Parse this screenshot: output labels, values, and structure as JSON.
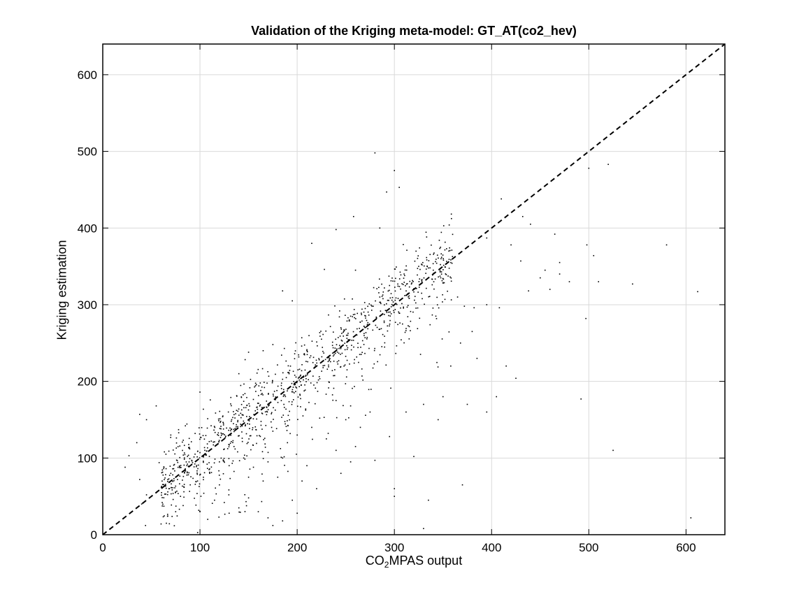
{
  "chart_data": {
    "type": "scatter",
    "title": "Validation of the Kriging meta-model: GT_AT(co2_hev)",
    "xlabel": {
      "main": "CO",
      "sub": "2",
      "rest": "MPAS output"
    },
    "ylabel": "Kriging estimation",
    "xlim": [
      0,
      640
    ],
    "ylim": [
      0,
      640
    ],
    "xticks": [
      0,
      100,
      200,
      300,
      400,
      500,
      600
    ],
    "yticks": [
      0,
      100,
      200,
      300,
      400,
      500,
      600
    ],
    "grid": true,
    "reference_line": {
      "style": "dashed",
      "x": [
        0,
        640
      ],
      "y": [
        0,
        640
      ]
    },
    "marker_color": "#000000",
    "series": [
      {
        "points": [
          [
            280,
            498
          ],
          [
            300,
            475
          ],
          [
            305,
            453
          ],
          [
            292,
            447
          ],
          [
            258,
            415
          ],
          [
            410,
            438
          ],
          [
            285,
            400
          ],
          [
            432,
            415
          ],
          [
            520,
            483
          ],
          [
            500,
            478
          ],
          [
            580,
            378
          ],
          [
            612,
            317
          ],
          [
            545,
            327
          ],
          [
            510,
            330
          ],
          [
            505,
            364
          ],
          [
            498,
            378
          ],
          [
            465,
            392
          ],
          [
            440,
            405
          ],
          [
            420,
            378
          ],
          [
            395,
            387
          ],
          [
            470,
            340
          ],
          [
            455,
            345
          ],
          [
            430,
            357
          ],
          [
            497,
            282
          ],
          [
            492,
            177
          ],
          [
            525,
            110
          ],
          [
            605,
            22
          ],
          [
            425,
            204
          ],
          [
            405,
            180
          ],
          [
            415,
            220
          ],
          [
            395,
            160
          ],
          [
            375,
            170
          ],
          [
            370,
            65
          ],
          [
            335,
            45
          ],
          [
            320,
            102
          ],
          [
            330,
            8
          ],
          [
            300,
            60
          ],
          [
            300,
            50
          ],
          [
            295,
            128
          ],
          [
            280,
            97
          ],
          [
            312,
            160
          ],
          [
            330,
            170
          ],
          [
            350,
            180
          ],
          [
            345,
            150
          ],
          [
            358,
            220
          ],
          [
            368,
            250
          ],
          [
            380,
            265
          ],
          [
            385,
            230
          ],
          [
            408,
            296
          ],
          [
            382,
            296
          ],
          [
            372,
            298
          ],
          [
            365,
            310
          ],
          [
            395,
            300
          ],
          [
            438,
            318
          ],
          [
            450,
            335
          ],
          [
            460,
            320
          ],
          [
            470,
            355
          ],
          [
            480,
            330
          ],
          [
            240,
            398
          ],
          [
            215,
            380
          ],
          [
            228,
            346
          ],
          [
            185,
            318
          ],
          [
            195,
            305
          ],
          [
            260,
            345
          ],
          [
            45,
            150
          ],
          [
            38,
            157
          ],
          [
            55,
            168
          ],
          [
            35,
            120
          ],
          [
            27,
            103
          ],
          [
            23,
            88
          ],
          [
            38,
            72
          ],
          [
            45,
            52
          ],
          [
            40,
            40
          ],
          [
            44,
            12
          ],
          [
            60,
            14
          ],
          [
            58,
            94
          ],
          [
            65,
            105
          ],
          [
            70,
            130
          ],
          [
            78,
            137
          ],
          [
            85,
            142
          ],
          [
            100,
            186
          ],
          [
            95,
            132
          ],
          [
            140,
            210
          ],
          [
            165,
            240
          ],
          [
            150,
            238
          ],
          [
            175,
            248
          ],
          [
            210,
            240
          ],
          [
            225,
            255
          ],
          [
            245,
            270
          ],
          [
            255,
            285
          ],
          [
            270,
            295
          ],
          [
            285,
            310
          ],
          [
            295,
            325
          ],
          [
            310,
            340
          ],
          [
            325,
            350
          ],
          [
            340,
            345
          ],
          [
            348,
            360
          ],
          [
            356,
            370
          ],
          [
            100,
            30
          ],
          [
            108,
            20
          ],
          [
            115,
            45
          ],
          [
            120,
            65
          ],
          [
            125,
            42
          ],
          [
            130,
            28
          ],
          [
            140,
            35
          ],
          [
            150,
            48
          ],
          [
            160,
            30
          ],
          [
            170,
            22
          ],
          [
            175,
            12
          ],
          [
            185,
            18
          ],
          [
            195,
            45
          ],
          [
            200,
            28
          ],
          [
            165,
            70
          ],
          [
            155,
            88
          ],
          [
            170,
            95
          ],
          [
            180,
            75
          ],
          [
            210,
            90
          ],
          [
            220,
            60
          ],
          [
            205,
            70
          ],
          [
            245,
            80
          ],
          [
            255,
            95
          ],
          [
            240,
            110
          ],
          [
            230,
            125
          ],
          [
            260,
            115
          ],
          [
            265,
            140
          ],
          [
            250,
            150
          ],
          [
            275,
            160
          ],
          [
            240,
            175
          ],
          [
            215,
            140
          ],
          [
            200,
            130
          ],
          [
            190,
            120
          ],
          [
            185,
            100
          ],
          [
            175,
            135
          ],
          [
            120,
            95
          ],
          [
            110,
            80
          ],
          [
            105,
            110
          ],
          [
            130,
            90
          ],
          [
            135,
            115
          ],
          [
            145,
            100
          ],
          [
            150,
            75
          ],
          [
            90,
            65
          ],
          [
            80,
            50
          ],
          [
            75,
            30
          ],
          [
            70,
            80
          ]
        ],
        "generated_cluster": {
          "count": 1100,
          "center_line": "y = x",
          "x_range": [
            60,
            360
          ],
          "spread": 25
        }
      }
    ]
  }
}
